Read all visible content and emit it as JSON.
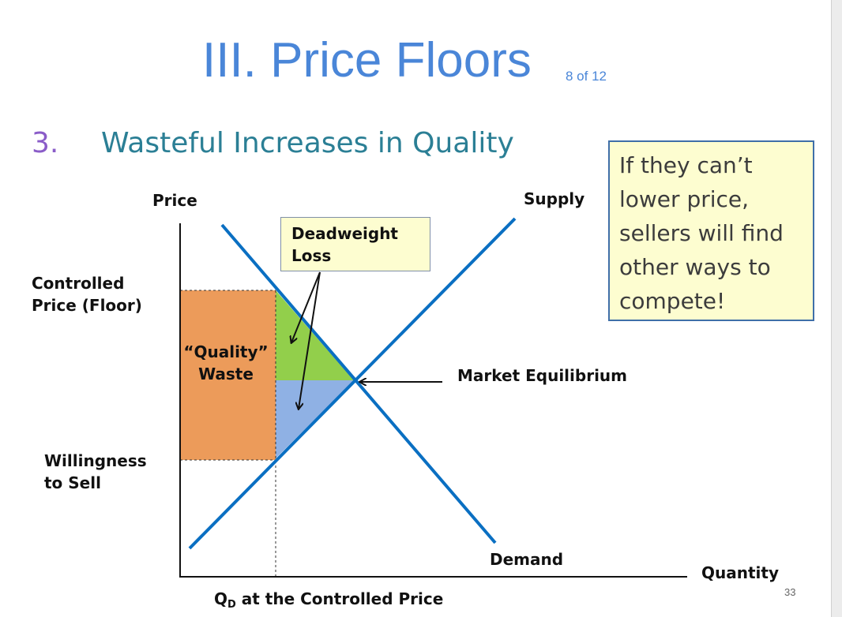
{
  "slide": {
    "title": "III. Price Floors",
    "counter": "8 of 12",
    "section_number": "3.",
    "section_title": "Wasteful Increases in Quality",
    "page_number": "33"
  },
  "callout": {
    "lines": [
      "If they can’t",
      "lower price,",
      "sellers will find",
      "other ways to",
      "compete!"
    ]
  },
  "diagram": {
    "y_axis_label": "Price",
    "x_axis_label": "Quantity",
    "supply_label": "Supply",
    "demand_label": "Demand",
    "controlled_price_label": [
      "Controlled",
      "Price (Floor)"
    ],
    "willingness_label": [
      "Willingness",
      "to Sell"
    ],
    "equilibrium_label": "Market Equilibrium",
    "deadweight_label": [
      "Deadweight",
      "Loss"
    ],
    "quality_waste_label": [
      "“Quality”",
      "Waste"
    ],
    "qd_label_main": "Q",
    "qd_label_sub": "D",
    "qd_label_rest": " at the Controlled Price",
    "colors": {
      "quality_waste": "#ec9b5a",
      "deadweight_upper": "#92cf4b",
      "deadweight_lower": "#8fb1e4",
      "curves": "#0a6fc2",
      "callout_bg": "#fdfdd0",
      "title": "#4a86d8"
    }
  }
}
